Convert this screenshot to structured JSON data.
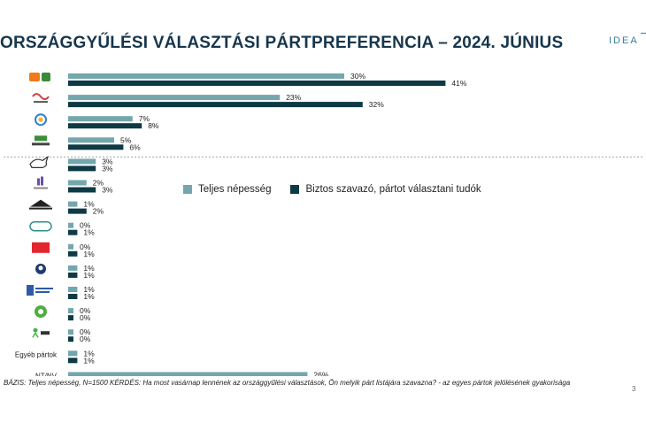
{
  "header": {
    "title": "ORSZÁGGYŰLÉSI VÁLASZTÁSI PÁRTPREFERENCIA – 2024. JÚNIUS",
    "logo_text": "IDEA",
    "page_number": "3"
  },
  "footnote": "BÁZIS: Teljes népesség, N=1500  KÉRDÉS:  Ha most vasárnap lennének az országgyűlési választások, Ön melyik párt listájára szavazna? - az egyes pártok jelölésének gyakorisága",
  "colors": {
    "series1": "#74a6ad",
    "series2": "#0d3a44",
    "separator": "#999999"
  },
  "chart_data": {
    "type": "bar",
    "orientation": "horizontal",
    "categories": [
      {
        "label": "",
        "icon": "fidesz-kdnp-logo"
      },
      {
        "label": "",
        "icon": "tisza-part-logo"
      },
      {
        "label": "",
        "icon": "dk-logo"
      },
      {
        "label": "",
        "icon": "mi-hazank-logo"
      },
      {
        "label": "",
        "icon": "mkkp-logo"
      },
      {
        "label": "",
        "icon": "momentum-logo"
      },
      {
        "label": "",
        "icon": "magyar-kétfarkú-logo"
      },
      {
        "label": "",
        "icon": "jobbik-logo"
      },
      {
        "label": "",
        "icon": "mszp-logo"
      },
      {
        "label": "",
        "icon": "parbeszed-logo"
      },
      {
        "label": "",
        "icon": "mindenki-magyarorszaga-logo"
      },
      {
        "label": "",
        "icon": "green-party-logo"
      },
      {
        "label": "",
        "icon": "lmp-logo"
      },
      {
        "label": "Egyéb pártok",
        "icon": ""
      },
      {
        "label": "NT/NV",
        "icon": ""
      }
    ],
    "series": [
      {
        "name": "Teljes népesség",
        "values": [
          30,
          23,
          7,
          5,
          3,
          2,
          1,
          0,
          0,
          1,
          1,
          0,
          0,
          1,
          26
        ]
      },
      {
        "name": "Biztos szavazó, pártot választani tudók",
        "values": [
          41,
          32,
          8,
          6,
          3,
          3,
          2,
          1,
          1,
          1,
          1,
          0,
          0,
          1,
          null
        ]
      }
    ],
    "value_suffix": "%",
    "separator_after_index": 3,
    "legend_position": "middle-right",
    "grid": false
  }
}
